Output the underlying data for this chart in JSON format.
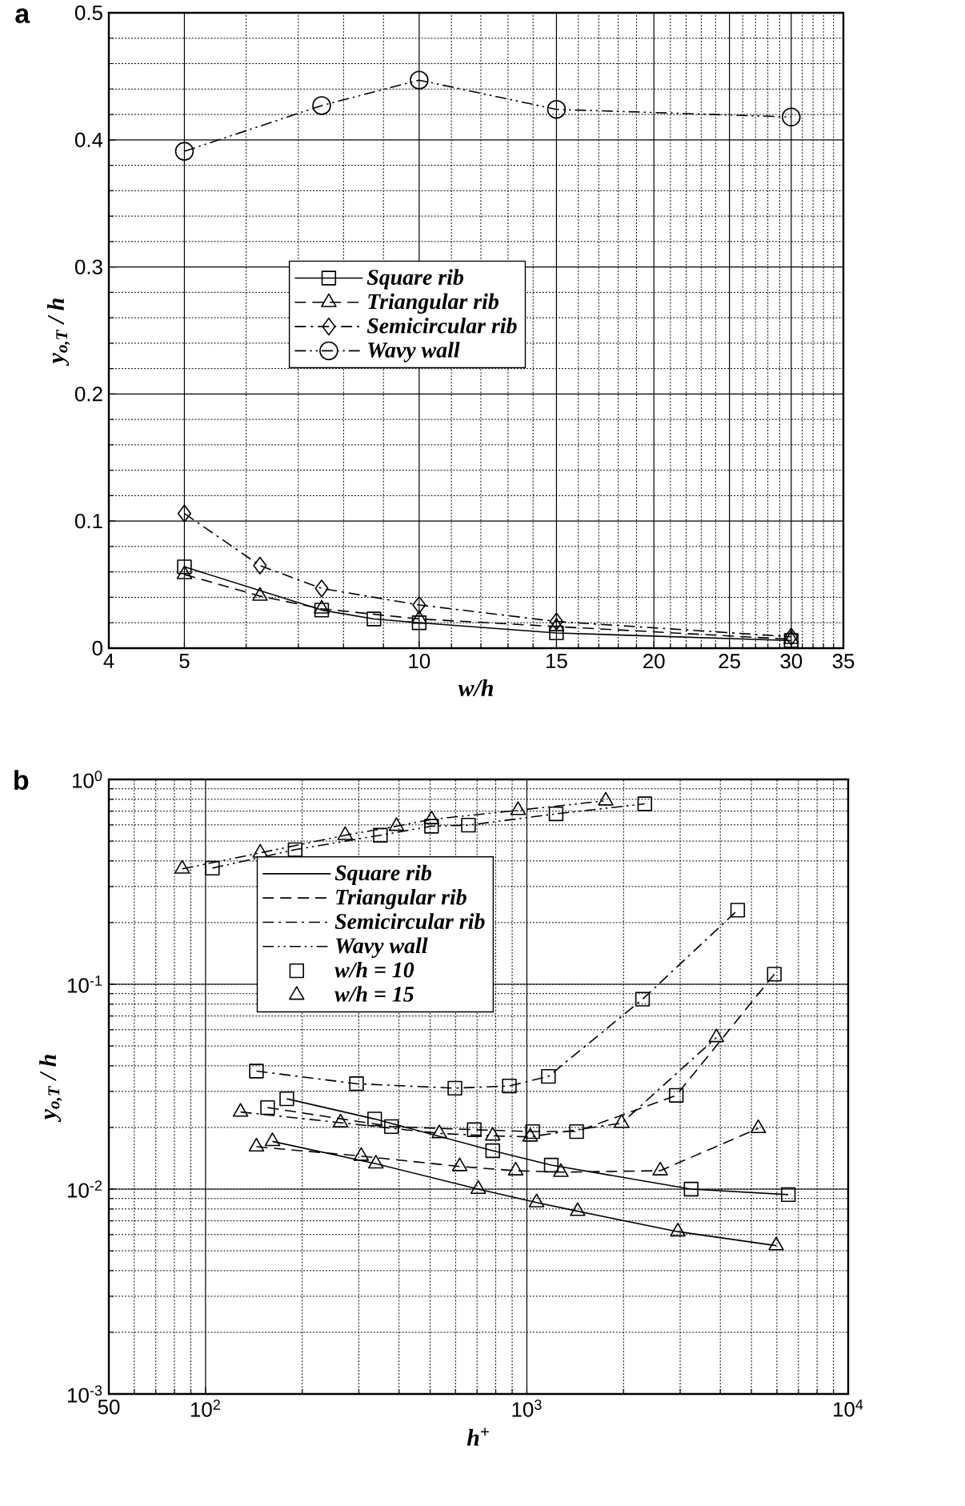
{
  "chart_data": [
    {
      "type": "line",
      "title": "a",
      "xlabel": "w/h",
      "ylabel": "y$_{o,T}$ / h",
      "log": "x",
      "xlim": [
        4,
        35
      ],
      "ylim": [
        0,
        0.5
      ],
      "xticks": [
        4,
        5,
        10,
        15,
        20,
        25,
        30,
        35
      ],
      "yticks": [
        0,
        0.1,
        0.2,
        0.3,
        0.4,
        0.5
      ],
      "grid": true,
      "legend": "center",
      "series": [
        {
          "name": "Square rib",
          "color": "#000000",
          "marker": "square",
          "line_style": "solid",
          "x": [
            5,
            7.5,
            8.75,
            10,
            15,
            30
          ],
          "values": [
            0.064,
            0.03,
            0.023,
            0.02,
            0.012,
            0.006
          ]
        },
        {
          "name": "Triangular rib",
          "color": "#000000",
          "marker": "triangle",
          "line_style": "dashed",
          "x": [
            5,
            6.25,
            7.5,
            10,
            15,
            30
          ],
          "values": [
            0.058,
            0.041,
            0.031,
            0.023,
            0.017,
            0.007
          ]
        },
        {
          "name": "Semicircular rib",
          "color": "#000000",
          "marker": "diamond",
          "line_style": "dashdot",
          "x": [
            5,
            6.25,
            7.5,
            10,
            15,
            30
          ],
          "values": [
            0.106,
            0.065,
            0.047,
            0.034,
            0.021,
            0.009
          ]
        },
        {
          "name": "Wavy wall",
          "color": "#000000",
          "marker": "circle",
          "line_style": "dashdotdot",
          "x": [
            5,
            7.5,
            10,
            15,
            30
          ],
          "values": [
            0.391,
            0.427,
            0.447,
            0.424,
            0.418
          ]
        }
      ]
    },
    {
      "type": "line",
      "title": "b",
      "xlabel": "h$^{+}$",
      "ylabel": "y$_{o,T}$ / h",
      "log": "xy",
      "xlim": [
        50,
        10000
      ],
      "ylim": [
        0.001,
        1
      ],
      "xticks": [
        50,
        {
          "value": 100,
          "label": "10$^{2}$"
        },
        {
          "value": 1000,
          "label": "10$^{3}$"
        },
        {
          "value": 10000,
          "label": "10$^{4}$"
        }
      ],
      "yticks": [
        {
          "value": 0.001,
          "label": "10$^{-3}$"
        },
        {
          "value": 0.01,
          "label": "10$^{-2}$"
        },
        {
          "value": 0.1,
          "label": "10$^{-1}$"
        },
        {
          "value": 1,
          "label": "10$^{0}$"
        }
      ],
      "grid": true,
      "legend": "center left",
      "series": [
        {
          "name": "Square rib",
          "color": "#000000",
          "marker": "none",
          "line_style": "solid",
          "x": [
            179,
            336,
            783,
            1191,
            3245,
            6510
          ],
          "values": [
            0.0276,
            0.022,
            0.0154,
            0.0131,
            0.01,
            0.0094
          ]
        },
        {
          "name": "Triangular rib",
          "color": "#000000",
          "marker": "none",
          "line_style": "dashed",
          "x": [
            156,
            379,
            686,
            1042,
            1428,
            2917,
            5890
          ],
          "values": [
            0.025,
            0.0202,
            0.0195,
            0.0191,
            0.0191,
            0.0287,
            0.112
          ]
        },
        {
          "name": "Semicircular rib",
          "color": "#000000",
          "marker": "none",
          "line_style": "dashdot",
          "x": [
            144,
            295,
            597,
            882,
            1167,
            2291,
            4530
          ],
          "values": [
            0.0377,
            0.0327,
            0.0311,
            0.0319,
            0.0355,
            0.0846,
            0.23
          ]
        },
        {
          "name": "Wavy wall",
          "color": "#000000",
          "marker": "none",
          "line_style": "dashdotdot",
          "x": [
            105,
            190,
            350,
            505,
            658,
            1233,
            2328
          ],
          "values": [
            0.369,
            0.454,
            0.534,
            0.591,
            0.598,
            0.679,
            0.76
          ]
        },
        {
          "color": "#000000",
          "marker": "none",
          "line_style": "solid",
          "x": [
            161.5,
            339,
            706,
            1072,
            1439,
            2950,
            5970
          ],
          "values": [
            0.0171,
            0.0133,
            0.01,
            0.0086,
            0.0078,
            0.0062,
            0.0053
          ]
        },
        {
          "color": "#000000",
          "marker": "none",
          "line_style": "dashed",
          "x": [
            144,
            305,
            618,
            923,
            1276,
            2600,
            5250
          ],
          "values": [
            0.0161,
            0.0145,
            0.0129,
            0.0123,
            0.0121,
            0.0123,
            0.0198
          ]
        },
        {
          "color": "#000000",
          "marker": "none",
          "line_style": "dashdot",
          "x": [
            128.5,
            263,
            534,
            783,
            1024,
            1972,
            3890
          ],
          "values": [
            0.0238,
            0.0211,
            0.0187,
            0.0182,
            0.018,
            0.021,
            0.055
          ]
        },
        {
          "color": "#000000",
          "marker": "none",
          "line_style": "dashdotdot",
          "x": [
            84.6,
            148,
            272,
            393,
            505,
            939,
            1760
          ],
          "values": [
            0.366,
            0.438,
            0.534,
            0.591,
            0.638,
            0.707,
            0.787
          ]
        },
        {
          "name": "w/h = 10",
          "type": "scatter",
          "color": "#000000",
          "marker": "square",
          "x": [
            179,
            336,
            783,
            1191,
            3245,
            6510,
            156,
            379,
            686,
            1042,
            1428,
            2917,
            5890,
            144,
            295,
            597,
            882,
            1167,
            2291,
            4530,
            105,
            190,
            350,
            505,
            658,
            1233,
            2328
          ],
          "values": [
            0.0276,
            0.022,
            0.0154,
            0.0131,
            0.01,
            0.0094,
            0.025,
            0.0202,
            0.0195,
            0.0191,
            0.0191,
            0.0287,
            0.112,
            0.0377,
            0.0327,
            0.0311,
            0.0319,
            0.0355,
            0.0846,
            0.23,
            0.369,
            0.454,
            0.534,
            0.591,
            0.598,
            0.679,
            0.76
          ]
        },
        {
          "name": "w/h = 15",
          "type": "scatter",
          "color": "#000000",
          "marker": "triangle",
          "x": [
            161.5,
            339,
            706,
            1072,
            1439,
            2950,
            5970,
            144,
            305,
            618,
            923,
            1276,
            2600,
            5250,
            128.5,
            263,
            534,
            783,
            1024,
            1972,
            3890,
            84.6,
            148,
            272,
            393,
            505,
            939,
            1760
          ],
          "values": [
            0.0171,
            0.0133,
            0.01,
            0.0086,
            0.0078,
            0.0062,
            0.0053,
            0.0161,
            0.0145,
            0.0129,
            0.0123,
            0.0121,
            0.0123,
            0.0198,
            0.0238,
            0.0211,
            0.0187,
            0.0182,
            0.018,
            0.021,
            0.055,
            0.366,
            0.438,
            0.534,
            0.591,
            0.638,
            0.707,
            0.787
          ]
        }
      ]
    }
  ]
}
